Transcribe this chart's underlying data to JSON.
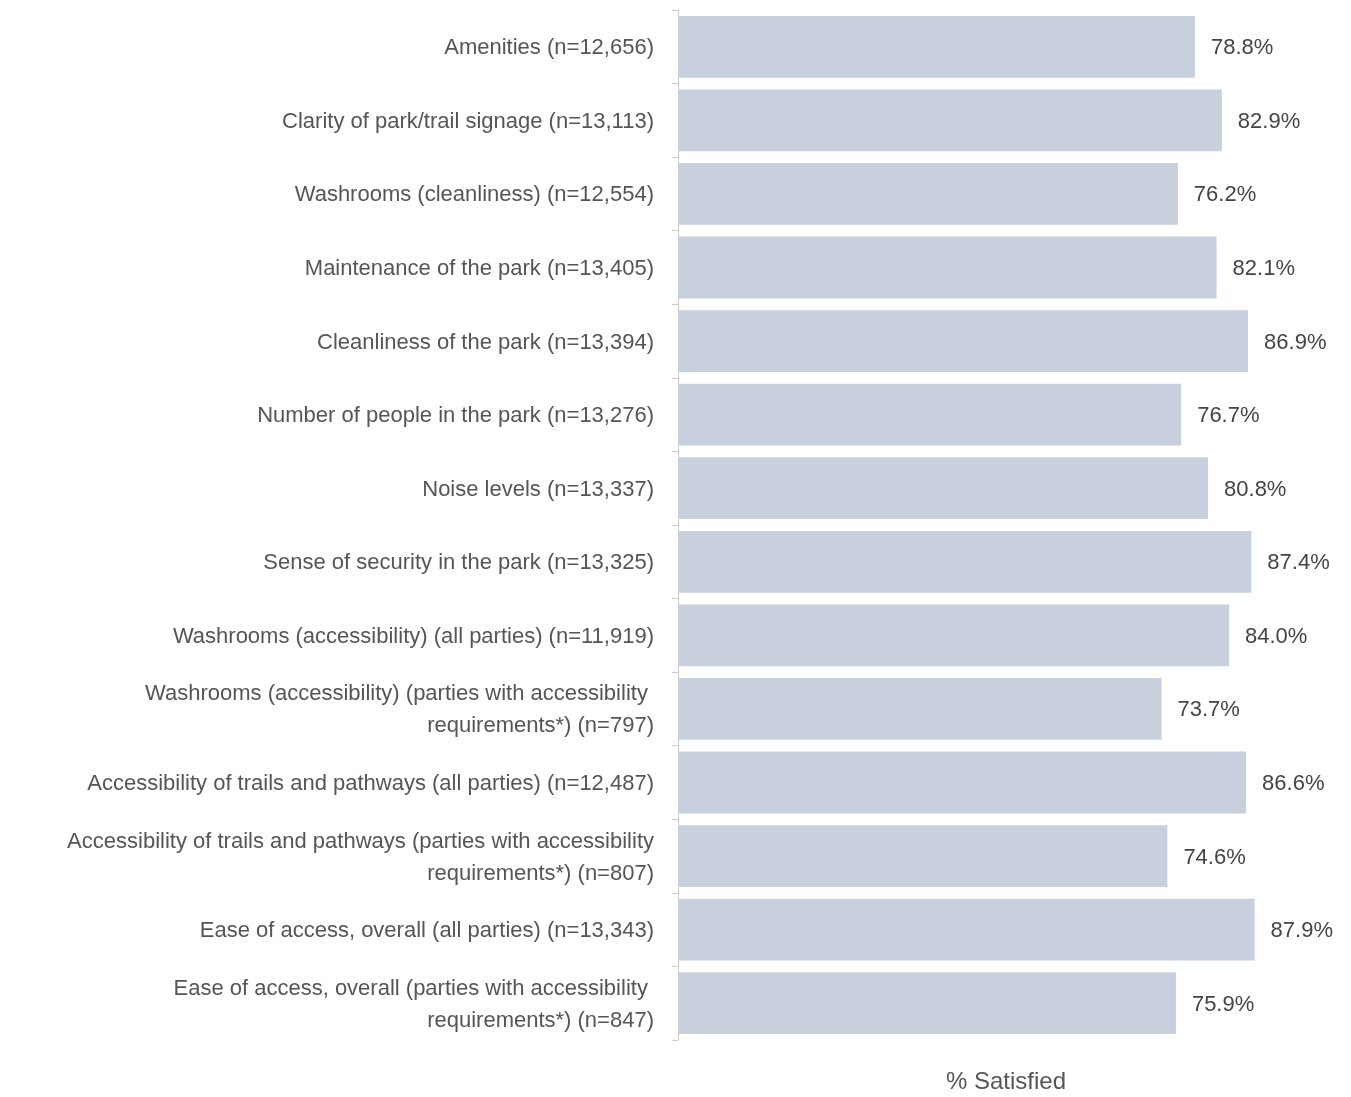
{
  "chart_data": {
    "type": "bar",
    "orientation": "horizontal",
    "xlabel": "% Satisfied",
    "categories": [
      "Amenities (n=12,656)",
      "Clarity of park/trail signage (n=13,113)",
      "Washrooms (cleanliness) (n=12,554)",
      "Maintenance of the park (n=13,405)",
      "Cleanliness of the park (n=13,394)",
      "Number of people in the park (n=13,276)",
      "Noise levels (n=13,337)",
      "Sense of security in the park (n=13,325)",
      "Washrooms (accessibility) (all parties) (n=11,919)",
      "Washrooms (accessibility) (parties with accessibility requirements*) (n=797)",
      "Accessibility of trails and pathways (all parties) (n=12,487)",
      "Accessibility of trails and pathways (parties with accessibility requirements*) (n=807)",
      "Ease of access, overall (all parties) (n=13,343)",
      "Ease of access, overall (parties with accessibility requirements*) (n=847)"
    ],
    "values": [
      78.8,
      82.9,
      76.2,
      82.1,
      86.9,
      76.7,
      80.8,
      87.4,
      84.0,
      73.7,
      86.6,
      74.6,
      87.9,
      75.9
    ],
    "value_labels": [
      "78.8%",
      "82.9%",
      "76.2%",
      "82.1%",
      "86.9%",
      "76.7%",
      "80.8%",
      "87.4%",
      "84.0%",
      "73.7%",
      "86.6%",
      "74.6%",
      "87.9%",
      "75.9%"
    ],
    "color": "#c8d0dd",
    "tick_labels": "y"
  }
}
